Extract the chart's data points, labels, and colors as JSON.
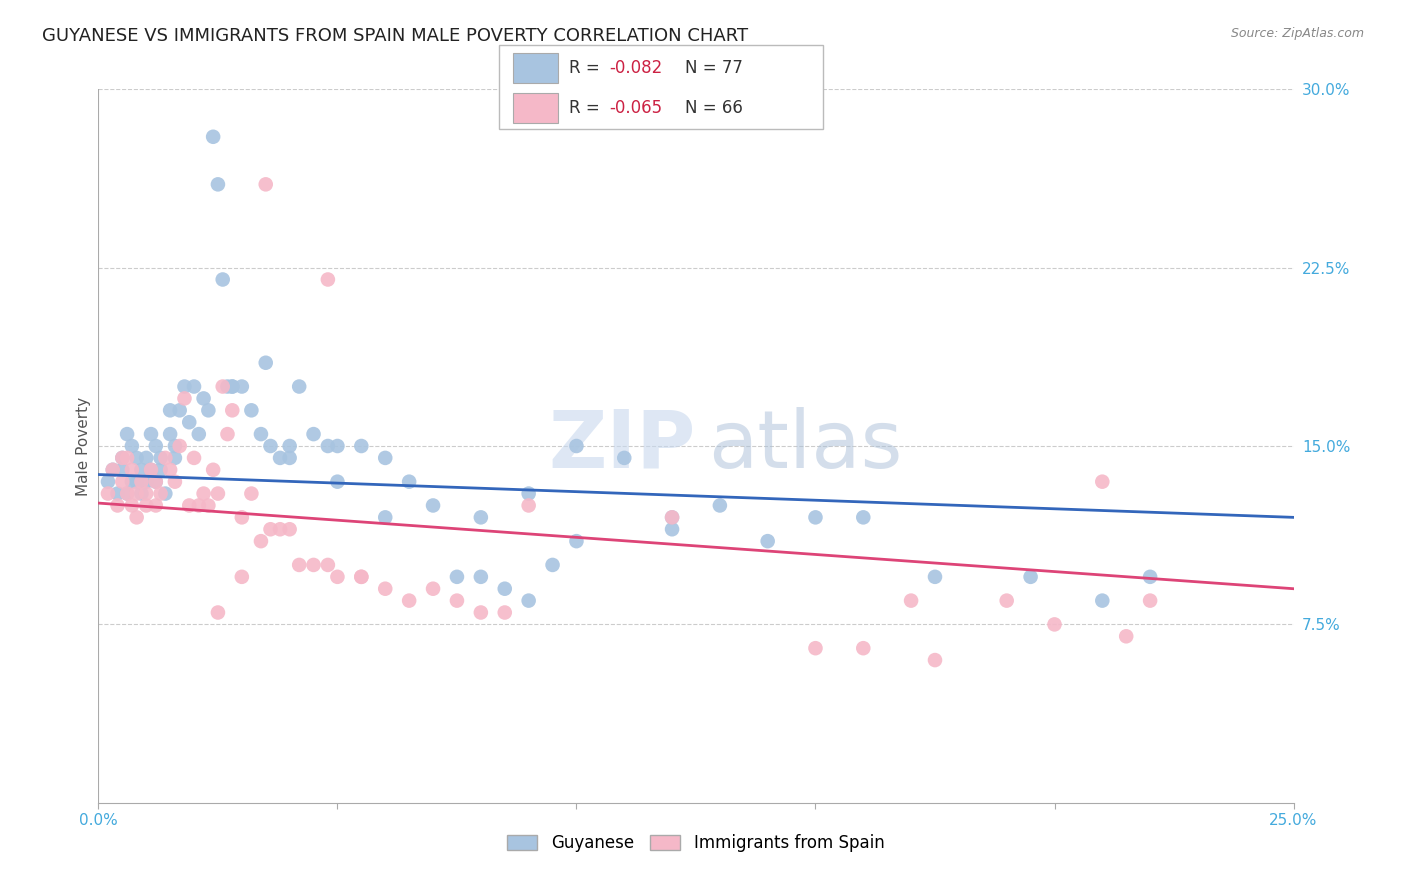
{
  "title": "GUYANESE VS IMMIGRANTS FROM SPAIN MALE POVERTY CORRELATION CHART",
  "source": "Source: ZipAtlas.com",
  "ylabel": "Male Poverty",
  "xlim": [
    0.0,
    0.25
  ],
  "ylim": [
    0.0,
    0.3
  ],
  "xtick_positions": [
    0.0,
    0.05,
    0.1,
    0.15,
    0.2,
    0.25
  ],
  "ytick_positions": [
    0.075,
    0.15,
    0.225,
    0.3
  ],
  "xticklabels": [
    "0.0%",
    "",
    "",
    "",
    "",
    "25.0%"
  ],
  "yticklabels": [
    "7.5%",
    "15.0%",
    "22.5%",
    "30.0%"
  ],
  "legend_labels": [
    "Guyanese",
    "Immigrants from Spain"
  ],
  "blue_R": "-0.082",
  "blue_N": "77",
  "pink_R": "-0.065",
  "pink_N": "66",
  "blue_color": "#a8c4e0",
  "pink_color": "#f5b8c8",
  "blue_line_color": "#3366bb",
  "pink_line_color": "#dd4477",
  "background_color": "#ffffff",
  "grid_color": "#cccccc",
  "blue_scatter_x": [
    0.002,
    0.003,
    0.004,
    0.005,
    0.005,
    0.006,
    0.006,
    0.007,
    0.007,
    0.008,
    0.008,
    0.009,
    0.009,
    0.01,
    0.01,
    0.011,
    0.011,
    0.012,
    0.012,
    0.013,
    0.013,
    0.014,
    0.015,
    0.015,
    0.016,
    0.016,
    0.017,
    0.018,
    0.019,
    0.02,
    0.021,
    0.022,
    0.023,
    0.024,
    0.025,
    0.026,
    0.027,
    0.028,
    0.03,
    0.032,
    0.034,
    0.036,
    0.038,
    0.04,
    0.042,
    0.045,
    0.048,
    0.05,
    0.055,
    0.06,
    0.065,
    0.07,
    0.075,
    0.08,
    0.085,
    0.09,
    0.095,
    0.1,
    0.11,
    0.12,
    0.13,
    0.14,
    0.16,
    0.175,
    0.195,
    0.21,
    0.22,
    0.09,
    0.1,
    0.028,
    0.035,
    0.04,
    0.05,
    0.06,
    0.08,
    0.12,
    0.15
  ],
  "blue_scatter_y": [
    0.135,
    0.14,
    0.13,
    0.14,
    0.145,
    0.13,
    0.155,
    0.135,
    0.15,
    0.135,
    0.145,
    0.14,
    0.13,
    0.135,
    0.145,
    0.14,
    0.155,
    0.135,
    0.15,
    0.14,
    0.145,
    0.13,
    0.155,
    0.165,
    0.15,
    0.145,
    0.165,
    0.175,
    0.16,
    0.175,
    0.155,
    0.17,
    0.165,
    0.28,
    0.26,
    0.22,
    0.175,
    0.175,
    0.175,
    0.165,
    0.155,
    0.15,
    0.145,
    0.15,
    0.175,
    0.155,
    0.15,
    0.135,
    0.15,
    0.145,
    0.135,
    0.125,
    0.095,
    0.095,
    0.09,
    0.085,
    0.1,
    0.15,
    0.145,
    0.115,
    0.125,
    0.11,
    0.12,
    0.095,
    0.095,
    0.085,
    0.095,
    0.13,
    0.11,
    0.175,
    0.185,
    0.145,
    0.15,
    0.12,
    0.12,
    0.12,
    0.12
  ],
  "pink_scatter_x": [
    0.002,
    0.003,
    0.004,
    0.005,
    0.005,
    0.006,
    0.006,
    0.007,
    0.007,
    0.008,
    0.008,
    0.009,
    0.01,
    0.01,
    0.011,
    0.012,
    0.012,
    0.013,
    0.014,
    0.015,
    0.016,
    0.017,
    0.018,
    0.019,
    0.02,
    0.021,
    0.022,
    0.023,
    0.024,
    0.025,
    0.026,
    0.027,
    0.028,
    0.03,
    0.032,
    0.034,
    0.036,
    0.038,
    0.04,
    0.042,
    0.045,
    0.048,
    0.05,
    0.055,
    0.06,
    0.065,
    0.07,
    0.075,
    0.08,
    0.085,
    0.09,
    0.12,
    0.15,
    0.17,
    0.21,
    0.22,
    0.035,
    0.048,
    0.055,
    0.16,
    0.175,
    0.19,
    0.2,
    0.215,
    0.025,
    0.03
  ],
  "pink_scatter_y": [
    0.13,
    0.14,
    0.125,
    0.135,
    0.145,
    0.13,
    0.145,
    0.125,
    0.14,
    0.13,
    0.12,
    0.135,
    0.13,
    0.125,
    0.14,
    0.125,
    0.135,
    0.13,
    0.145,
    0.14,
    0.135,
    0.15,
    0.17,
    0.125,
    0.145,
    0.125,
    0.13,
    0.125,
    0.14,
    0.13,
    0.175,
    0.155,
    0.165,
    0.12,
    0.13,
    0.11,
    0.115,
    0.115,
    0.115,
    0.1,
    0.1,
    0.1,
    0.095,
    0.095,
    0.09,
    0.085,
    0.09,
    0.085,
    0.08,
    0.08,
    0.125,
    0.12,
    0.065,
    0.085,
    0.135,
    0.085,
    0.26,
    0.22,
    0.095,
    0.065,
    0.06,
    0.085,
    0.075,
    0.07,
    0.08,
    0.095
  ],
  "title_fontsize": 13,
  "label_fontsize": 11,
  "tick_fontsize": 11
}
